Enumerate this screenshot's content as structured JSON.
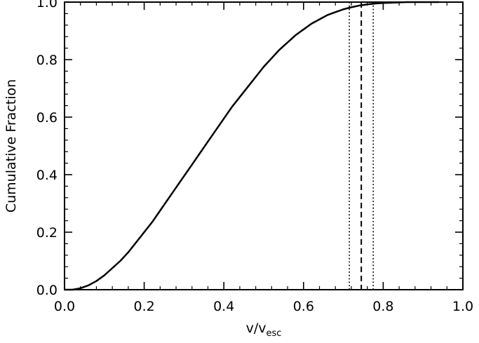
{
  "chart_data": {
    "type": "line",
    "title": "",
    "xlabel": "v/v",
    "xlabel_sub": "esc",
    "ylabel": "Cumulative Fraction",
    "xlim": [
      0.0,
      1.0
    ],
    "ylim": [
      0.0,
      1.0
    ],
    "xticks": [
      0.0,
      0.2,
      0.4,
      0.6,
      0.8,
      1.0
    ],
    "yticks": [
      0.0,
      0.2,
      0.4,
      0.6,
      0.8,
      1.0
    ],
    "xtick_labels": [
      "0.0",
      "0.2",
      "0.4",
      "0.6",
      "0.8",
      "1.0"
    ],
    "ytick_labels": [
      "0.0",
      "0.2",
      "0.4",
      "0.6",
      "0.8",
      "1.0"
    ],
    "grid": false,
    "legend": "none",
    "series": [
      {
        "style": "solid",
        "x": [
          0.0,
          0.02,
          0.04,
          0.06,
          0.08,
          0.1,
          0.12,
          0.14,
          0.16,
          0.18,
          0.2,
          0.22,
          0.24,
          0.26,
          0.28,
          0.3,
          0.32,
          0.34,
          0.36,
          0.38,
          0.4,
          0.42,
          0.44,
          0.46,
          0.48,
          0.5,
          0.52,
          0.54,
          0.56,
          0.58,
          0.6,
          0.62,
          0.64,
          0.66,
          0.68,
          0.7,
          0.72,
          0.74,
          0.76,
          0.78,
          0.8,
          0.82,
          0.84,
          0.86,
          0.88,
          0.9,
          0.92,
          0.94
        ],
        "y": [
          0.0,
          0.0,
          0.005,
          0.015,
          0.03,
          0.05,
          0.075,
          0.1,
          0.13,
          0.165,
          0.2,
          0.235,
          0.275,
          0.315,
          0.355,
          0.395,
          0.435,
          0.475,
          0.515,
          0.555,
          0.595,
          0.635,
          0.67,
          0.705,
          0.74,
          0.775,
          0.805,
          0.835,
          0.86,
          0.885,
          0.905,
          0.925,
          0.94,
          0.955,
          0.965,
          0.975,
          0.982,
          0.988,
          0.992,
          0.995,
          0.997,
          0.998,
          0.999,
          1.0,
          1.0,
          1.0,
          1.0,
          1.0
        ]
      }
    ],
    "vlines": [
      {
        "x": 0.715,
        "style": "dotted"
      },
      {
        "x": 0.745,
        "style": "dashed"
      },
      {
        "x": 0.775,
        "style": "dotted"
      }
    ]
  }
}
